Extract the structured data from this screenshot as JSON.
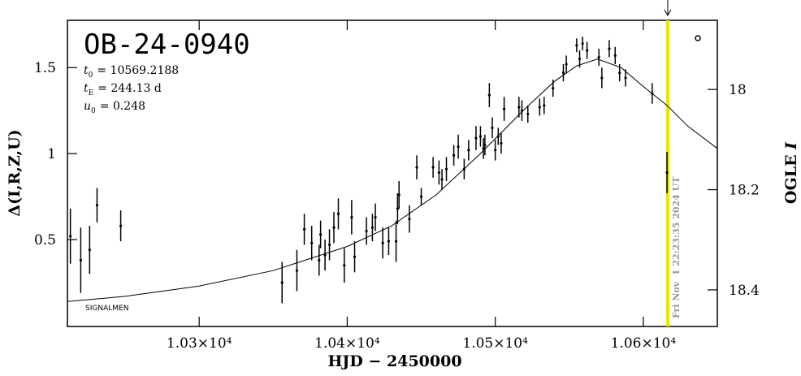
{
  "chart_data": {
    "type": "errorbar",
    "title": "OB-24-0940",
    "params": [
      {
        "symbol": "t",
        "subscript": "0",
        "text": "= 10569.2188"
      },
      {
        "symbol": "t",
        "subscript": "E",
        "text": "= 244.13 d"
      },
      {
        "symbol": "u",
        "subscript": "0",
        "text": "= 0.248"
      }
    ],
    "credit": "SIGNALMEN",
    "xlabel": "HJD − 2450000",
    "ylabel": "Δ(I,R,Z,U)",
    "y2label": {
      "text": "OGLE ",
      "italic": "I"
    },
    "xlim": [
      10211,
      10650
    ],
    "ylim": [
      -0.005,
      1.775
    ],
    "y2lim": [
      18.473,
      17.862
    ],
    "xticks": [
      {
        "value": 10300,
        "label": "1.03×10⁴"
      },
      {
        "value": 10400,
        "label": "1.04×10⁴"
      },
      {
        "value": 10500,
        "label": "1.05×10⁴"
      },
      {
        "value": 10600,
        "label": "1.06×10⁴"
      }
    ],
    "yticks": [
      0.5,
      1,
      1.5
    ],
    "y2ticks": [
      18,
      18.2,
      18.4
    ],
    "series": [
      {
        "name": "data",
        "color": "#000000",
        "x": [
          10213,
          10220,
          10226,
          10231,
          10247,
          10356,
          10366,
          10371,
          10376,
          10381,
          10382,
          10385,
          10388,
          10391,
          10394,
          10398,
          10403,
          10405,
          10413,
          10417,
          10419,
          10424,
          10428,
          10433,
          10434,
          10435,
          10442,
          10447,
          10450,
          10458,
          10462,
          10464,
          10467,
          10472,
          10475,
          10479,
          10482,
          10487,
          10490,
          10492,
          10493,
          10496,
          10498,
          10500,
          10502,
          10504,
          10506,
          10516,
          10518,
          10522,
          10530,
          10533,
          10539,
          10546,
          10548,
          10555,
          10557,
          10559,
          10562,
          10570,
          10572,
          10577,
          10581,
          10584,
          10588,
          10606,
          10616
        ],
        "values": [
          0.52,
          0.38,
          0.44,
          0.7,
          0.58,
          0.25,
          0.32,
          0.56,
          0.48,
          0.38,
          0.53,
          0.41,
          0.47,
          0.57,
          0.65,
          0.35,
          0.63,
          0.4,
          0.55,
          0.57,
          0.63,
          0.48,
          0.49,
          0.49,
          0.68,
          0.76,
          0.62,
          0.92,
          0.75,
          0.92,
          0.89,
          0.85,
          0.91,
          0.99,
          1.04,
          0.91,
          1.02,
          1.09,
          1.1,
          1.03,
          1.05,
          1.34,
          1.15,
          1.02,
          1.1,
          1.06,
          1.26,
          1.27,
          1.25,
          1.23,
          1.27,
          1.28,
          1.38,
          1.47,
          1.52,
          1.63,
          1.55,
          1.64,
          1.6,
          1.56,
          1.44,
          1.61,
          1.57,
          1.47,
          1.44,
          1.35,
          0.89
        ],
        "errors": [
          0.16,
          0.19,
          0.14,
          0.1,
          0.09,
          0.12,
          0.12,
          0.09,
          0.1,
          0.09,
          0.08,
          0.09,
          0.09,
          0.09,
          0.09,
          0.1,
          0.1,
          0.09,
          0.08,
          0.08,
          0.08,
          0.09,
          0.08,
          0.12,
          0.09,
          0.08,
          0.08,
          0.07,
          0.05,
          0.06,
          0.07,
          0.06,
          0.07,
          0.06,
          0.07,
          0.06,
          0.06,
          0.07,
          0.06,
          0.06,
          0.06,
          0.07,
          0.06,
          0.06,
          0.05,
          0.06,
          0.07,
          0.06,
          0.06,
          0.05,
          0.05,
          0.05,
          0.05,
          0.05,
          0.05,
          0.04,
          0.05,
          0.04,
          0.05,
          0.05,
          0.06,
          0.05,
          0.05,
          0.05,
          0.05,
          0.06,
          0.12
        ]
      }
    ],
    "model": {
      "color": "#000000",
      "x": [
        10211,
        10250,
        10300,
        10350,
        10400,
        10430,
        10460,
        10490,
        10520,
        10540,
        10555,
        10569,
        10585,
        10600,
        10616,
        10630,
        10650
      ],
      "values": [
        0.14,
        0.17,
        0.23,
        0.32,
        0.46,
        0.58,
        0.76,
        1.0,
        1.26,
        1.42,
        1.51,
        1.55,
        1.5,
        1.39,
        1.28,
        1.16,
        1.03
      ]
    },
    "now_line": {
      "x": 10616.5,
      "color": "#e6e600",
      "label": "Fri Nov  1 22:23:35 2024 UT",
      "label_color": "#999999"
    }
  }
}
